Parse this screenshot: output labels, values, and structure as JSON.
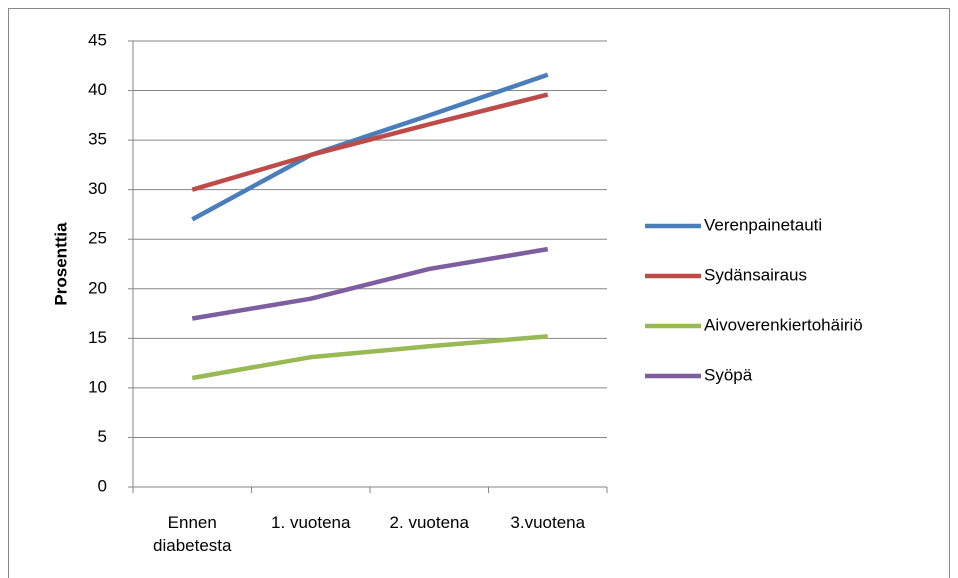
{
  "chart_data": {
    "type": "line",
    "y_label": "Prosenttia",
    "categories": [
      "Ennen diabetesta",
      "1. vuotena",
      "2. vuotena",
      "3.vuotena"
    ],
    "series": [
      {
        "name": "Verenpainetauti",
        "color": "#4a7ebb",
        "values": [
          27,
          33.5,
          37.5,
          41.6
        ]
      },
      {
        "name": "Sydänsairaus",
        "color": "#be4b48",
        "values": [
          30,
          33.5,
          36.6,
          39.6
        ]
      },
      {
        "name": "Aivoverenkiertohäiriö",
        "color": "#98b954",
        "values": [
          11,
          13.1,
          14.2,
          15.2
        ]
      },
      {
        "name": "Syöpä",
        "color": "#7d5fa0",
        "values": [
          17,
          19,
          22,
          24
        ]
      }
    ],
    "ylim": [
      0,
      45
    ],
    "yticks": [
      0,
      5,
      10,
      15,
      20,
      25,
      30,
      35,
      40,
      45
    ],
    "grid": true,
    "legend": "right"
  }
}
